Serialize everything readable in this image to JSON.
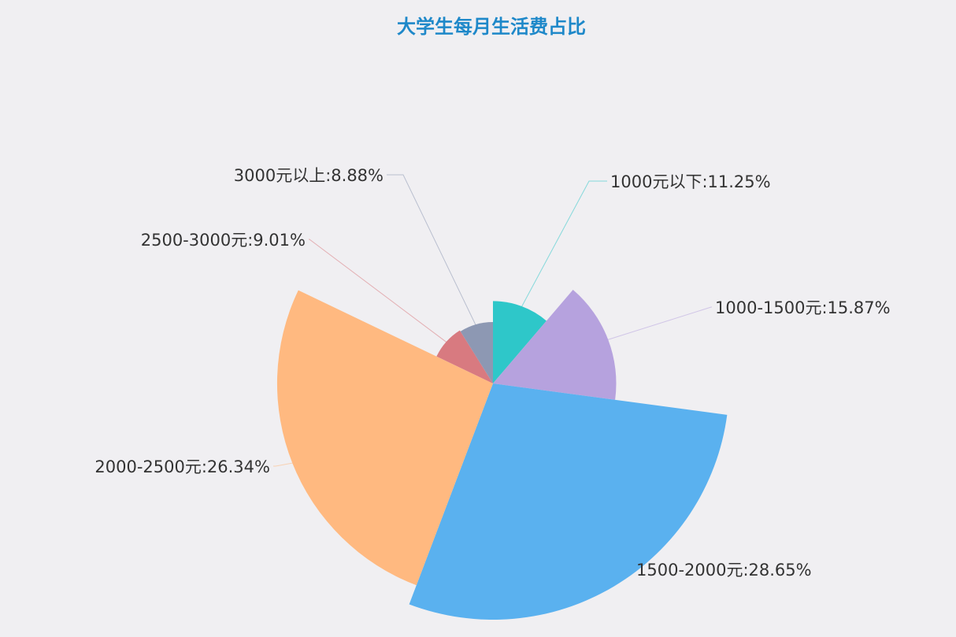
{
  "chart_data": {
    "type": "pie",
    "variant": "nightingale-rose",
    "title": "大学生每月生活费占比",
    "label_format": "{name}:{percent}%",
    "slices": [
      {
        "name": "1000元以下",
        "percent": 11.25,
        "color": "#2ec7c9"
      },
      {
        "name": "1000-1500元",
        "percent": 15.87,
        "color": "#b6a2de"
      },
      {
        "name": "1500-2000元",
        "percent": 28.65,
        "color": "#5ab1ef"
      },
      {
        "name": "2000-2500元",
        "percent": 26.34,
        "color": "#ffb980"
      },
      {
        "name": "2500-3000元",
        "percent": 9.01,
        "color": "#d87a80"
      },
      {
        "name": "3000元以上",
        "percent": 8.88,
        "color": "#8d98b3"
      }
    ],
    "labels": [
      "1000元以下:11.25%",
      "1000-1500元:15.87%",
      "1500-2000元:28.65%",
      "2000-2500元:26.34%",
      "2500-3000元:9.01%",
      "3000元以上:8.88%"
    ]
  }
}
